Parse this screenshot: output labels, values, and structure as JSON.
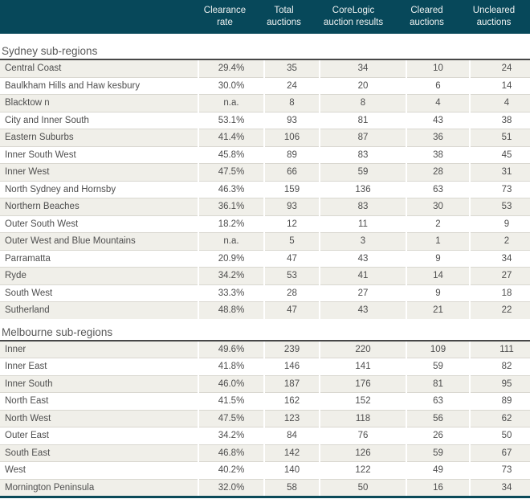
{
  "header": {
    "columns": [
      {
        "line1": "Clearance",
        "line2": "rate"
      },
      {
        "line1": "Total",
        "line2": "auctions"
      },
      {
        "line1": "CoreLogic",
        "line2": "auction results"
      },
      {
        "line1": "Cleared",
        "line2": "auctions"
      },
      {
        "line1": "Uncleared",
        "line2": "auctions"
      }
    ]
  },
  "sections": [
    {
      "title": "Sydney sub-regions",
      "rows": [
        [
          "Central Coast",
          "29.4%",
          "35",
          "34",
          "10",
          "24"
        ],
        [
          "Baulkham Hills and Haw kesbury",
          "30.0%",
          "24",
          "20",
          "6",
          "14"
        ],
        [
          "Blacktow n",
          "n.a.",
          "8",
          "8",
          "4",
          "4"
        ],
        [
          "City and Inner South",
          "53.1%",
          "93",
          "81",
          "43",
          "38"
        ],
        [
          "Eastern Suburbs",
          "41.4%",
          "106",
          "87",
          "36",
          "51"
        ],
        [
          "Inner South West",
          "45.8%",
          "89",
          "83",
          "38",
          "45"
        ],
        [
          "Inner West",
          "47.5%",
          "66",
          "59",
          "28",
          "31"
        ],
        [
          "North Sydney and Hornsby",
          "46.3%",
          "159",
          "136",
          "63",
          "73"
        ],
        [
          "Northern Beaches",
          "36.1%",
          "93",
          "83",
          "30",
          "53"
        ],
        [
          "Outer South West",
          "18.2%",
          "12",
          "11",
          "2",
          "9"
        ],
        [
          "Outer West and Blue Mountains",
          "n.a.",
          "5",
          "3",
          "1",
          "2"
        ],
        [
          "Parramatta",
          "20.9%",
          "47",
          "43",
          "9",
          "34"
        ],
        [
          "Ryde",
          "34.2%",
          "53",
          "41",
          "14",
          "27"
        ],
        [
          "South West",
          "33.3%",
          "28",
          "27",
          "9",
          "18"
        ],
        [
          "Sutherland",
          "48.8%",
          "47",
          "43",
          "21",
          "22"
        ]
      ]
    },
    {
      "title": "Melbourne sub-regions",
      "rows": [
        [
          "Inner",
          "49.6%",
          "239",
          "220",
          "109",
          "111"
        ],
        [
          "Inner East",
          "41.8%",
          "146",
          "141",
          "59",
          "82"
        ],
        [
          "Inner South",
          "46.0%",
          "187",
          "176",
          "81",
          "95"
        ],
        [
          "North East",
          "41.5%",
          "162",
          "152",
          "63",
          "89"
        ],
        [
          "North West",
          "47.5%",
          "123",
          "118",
          "56",
          "62"
        ],
        [
          "Outer East",
          "34.2%",
          "84",
          "76",
          "26",
          "50"
        ],
        [
          "South East",
          "46.8%",
          "142",
          "126",
          "59",
          "67"
        ],
        [
          "West",
          "40.2%",
          "140",
          "122",
          "49",
          "73"
        ],
        [
          "Mornington Peninsula",
          "32.0%",
          "58",
          "50",
          "16",
          "34"
        ]
      ]
    }
  ],
  "colors": {
    "header_bg": "#07485a",
    "header_text": "#eef1f1",
    "row_shaded": "#f0efe9",
    "row_rule": "#d9d7d0",
    "section_rule": "#474747",
    "body_text": "#4e4e4e",
    "bottom_bar": "#0b4a59"
  }
}
